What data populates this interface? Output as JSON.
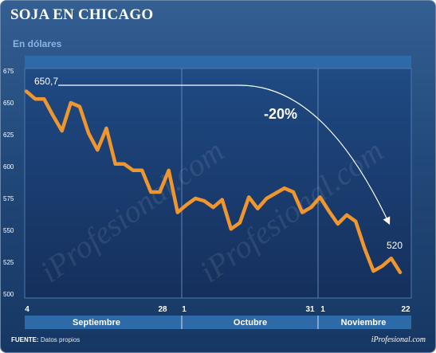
{
  "header": {
    "title": "SOJA EN CHICAGO",
    "subtitle": "En dólares"
  },
  "footer": {
    "source_label": "FUENTE:",
    "source_text": "Datos propios",
    "brand": "iProfesional.com"
  },
  "watermark": "iProfesional.com",
  "colors": {
    "line": "#f0962e",
    "background": "#1e4373",
    "plot_background": "#1b3f73"
  },
  "chart_data": {
    "type": "line",
    "title": "SOJA EN CHICAGO",
    "subtitle": "En dólares",
    "ylim": [
      500,
      675
    ],
    "yticks": [
      500,
      525,
      550,
      575,
      600,
      625,
      650,
      675
    ],
    "xticks": [
      "4",
      "28",
      "1",
      "31",
      "1",
      "22"
    ],
    "months": [
      "Septiembre",
      "Octubre",
      "Noviembre"
    ],
    "grid": "vertical month dividers",
    "series": [
      {
        "values": [
          659,
          653,
          653,
          640,
          628,
          650,
          647,
          626,
          613,
          630,
          602,
          602,
          597,
          597,
          580,
          580,
          597,
          564,
          570,
          575,
          573,
          568,
          574,
          551,
          556,
          576,
          567,
          575,
          579,
          583,
          580,
          564,
          568,
          576,
          565,
          555,
          562,
          557,
          536,
          518,
          522,
          528,
          517
        ]
      }
    ],
    "annotations": {
      "start_label": "650,7",
      "end_label": "520",
      "change_label": "-20%"
    }
  }
}
